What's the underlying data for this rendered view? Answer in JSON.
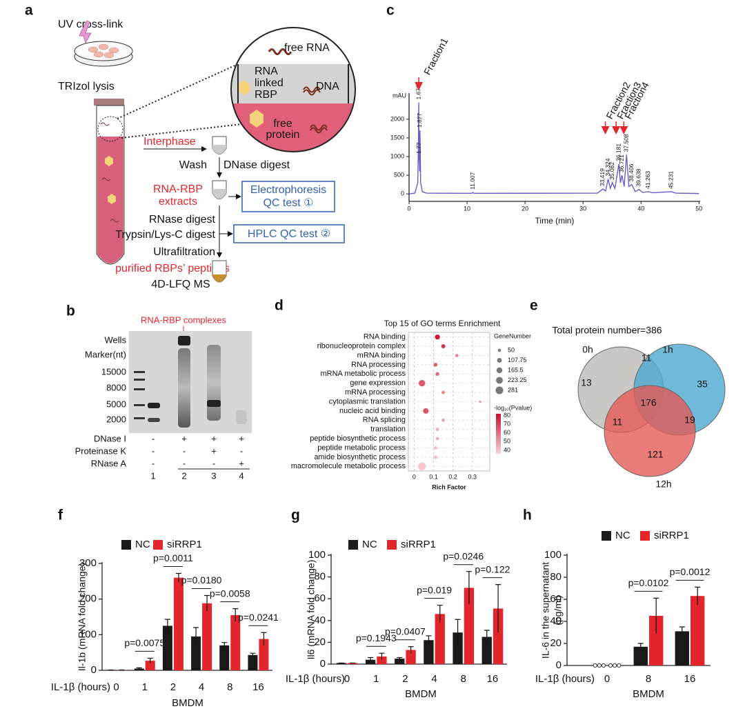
{
  "panel_labels": [
    "a",
    "b",
    "c",
    "d",
    "e",
    "f",
    "g",
    "h"
  ],
  "workflow": {
    "uv": "UV cross-link",
    "trizol": "TRIzol lysis",
    "free_rna": "free RNA",
    "rna_linked_rbp": [
      "RNA",
      "linked",
      "RBP"
    ],
    "dna": "DNA",
    "free_protein": [
      "free",
      "protein"
    ],
    "interphase": "Interphase",
    "wash": "Wash",
    "dnase": "DNase digest",
    "extracts": [
      "RNA-RBP",
      "extracts"
    ],
    "electrophoresis": [
      "Electrophoresis",
      "QC test ①"
    ],
    "rnase": "RNase digest",
    "trypsin": "Trypsin/Lys-C digest",
    "hplc": "HPLC QC test ②",
    "ultrafiltration": "Ultrafiltration",
    "purified": "purified RBPs’ peptides",
    "ms": "4D-LFQ MS"
  },
  "gel": {
    "annotation": "RNA-RBP complexes",
    "row_labels": [
      "Wells",
      "Marker(nt)"
    ],
    "ladder": [
      "15000",
      "8000",
      "5000",
      "2000"
    ],
    "conditions": [
      {
        "name": "DNase I",
        "marks": [
          "-",
          "+",
          "+",
          "+"
        ]
      },
      {
        "name": "Proteinase K",
        "marks": [
          "-",
          "-",
          "+",
          "-"
        ]
      },
      {
        "name": "RNase A",
        "marks": [
          "-",
          "-",
          "-",
          "+"
        ]
      }
    ],
    "lanes": [
      "1",
      "2",
      "3",
      "4"
    ]
  },
  "venn": {
    "title": "Total protein number=386",
    "sets": [
      "0h",
      "1h",
      "12h"
    ],
    "regions": [
      "13",
      "11",
      "35",
      "176",
      "11",
      "19",
      "121"
    ]
  },
  "chart_data": [
    {
      "type": "line",
      "xlabel": "Time (min)",
      "ylabel": "mAU",
      "color": "#6a5acd",
      "x": [
        0,
        1.0,
        1.5,
        1.602,
        1.678,
        1.72,
        1.77,
        1.82,
        1.877,
        2.0,
        2.3,
        3,
        10.8,
        11.007,
        11.2,
        32.5,
        33.419,
        33.9,
        34.324,
        34.7,
        35.062,
        35.5,
        36.181,
        36.45,
        36.721,
        37.1,
        37.508,
        37.9,
        38.406,
        39.0,
        39.638,
        40.3,
        41.263,
        42,
        45.231,
        46,
        50
      ],
      "values": [
        0,
        20,
        300,
        1200,
        2450,
        900,
        1000,
        600,
        1700,
        300,
        60,
        20,
        15,
        40,
        15,
        20,
        130,
        80,
        400,
        150,
        300,
        150,
        800,
        300,
        500,
        200,
        1050,
        200,
        250,
        60,
        120,
        40,
        60,
        30,
        60,
        20,
        10
      ],
      "peaks": [
        1.678,
        1.77,
        1.877,
        11.007,
        33.419,
        34.324,
        35.062,
        36.181,
        36.721,
        37.508,
        38.406,
        39.638,
        41.263,
        45.231
      ],
      "fractions": [
        "Fraction1",
        "Fraction2",
        "Fraction3",
        "Fraction4"
      ],
      "xlim": [
        0,
        50.2
      ],
      "ylim": [
        -200,
        2700
      ],
      "xticks": [
        0,
        10,
        20,
        30,
        40,
        50
      ],
      "yticks": [
        0,
        500,
        1000,
        1500,
        2000
      ]
    },
    {
      "type": "bubble",
      "title": "Top 15 of GO terms Enrichment",
      "xlabel": "Rich Factor",
      "categories": [
        "RNA binding",
        "ribonucleoprotein complex",
        "mRNA binding",
        "RNA processing",
        "mRNA metabolic process",
        "gene expression",
        "mRNA processing",
        "cytoplasmic translation",
        "nucleic acid binding",
        "RNA splicing",
        "translation",
        "peptide biosynthetic process",
        "peptide metabolic process",
        "amide biosynthetic process",
        "macromolecule metabolic process"
      ],
      "x": [
        0.12,
        0.15,
        0.22,
        0.11,
        0.12,
        0.04,
        0.15,
        0.34,
        0.06,
        0.15,
        0.12,
        0.12,
        0.11,
        0.11,
        0.04
      ],
      "size": [
        120,
        80,
        50,
        70,
        70,
        200,
        55,
        30,
        150,
        50,
        55,
        55,
        55,
        58,
        281
      ],
      "color_values": [
        80,
        75,
        55,
        65,
        60,
        65,
        55,
        50,
        65,
        50,
        45,
        45,
        42,
        42,
        40
      ],
      "xlim": [
        -0.03,
        0.39
      ],
      "xticks": [
        0,
        0.1,
        0.2,
        0.3
      ],
      "size_title": "GeneNumber",
      "size_ticks": [
        50,
        107.75,
        165.5,
        223.25,
        281
      ],
      "color_title": "-log₁₀(Pvalue)",
      "color_lim": [
        36,
        82
      ],
      "color_ticks": [
        80,
        70,
        60,
        50,
        40
      ]
    },
    {
      "type": "bar",
      "ylabel": [
        "Il-1b (mRNA fold change)"
      ],
      "xlabel": "BMDM",
      "category_label": "IL-1β (hours)",
      "categories": [
        "0",
        "1",
        "2",
        "4",
        "8",
        "16"
      ],
      "series": [
        {
          "name": "NC",
          "color": "#1a1a1a",
          "values": [
            1,
            5,
            125,
            95,
            70,
            43
          ],
          "errors": [
            0,
            2,
            18,
            25,
            8,
            5
          ]
        },
        {
          "name": "siRRP1",
          "color": "#e3262b",
          "values": [
            1,
            27,
            260,
            188,
            155,
            88
          ],
          "errors": [
            0,
            7,
            12,
            22,
            18,
            18
          ]
        }
      ],
      "annotations": [
        null,
        "p=0.0075",
        "p=0.0011",
        "p=0.0180",
        "p=0.0058",
        "p=0.0241"
      ],
      "ylim": [
        0,
        300
      ],
      "yticks": [
        0,
        100,
        200,
        300
      ]
    },
    {
      "type": "bar",
      "ylabel": [
        "Il6 (mRNA fold change)"
      ],
      "xlabel": "BMDM",
      "category_label": "IL-1β (hours)",
      "categories": [
        "0",
        "1",
        "2",
        "4",
        "8",
        "16"
      ],
      "series": [
        {
          "name": "NC",
          "color": "#1a1a1a",
          "values": [
            1,
            4,
            5,
            22,
            29,
            25
          ],
          "errors": [
            0,
            2,
            1,
            4,
            12,
            6
          ]
        },
        {
          "name": "siRRP1",
          "color": "#e3262b",
          "values": [
            1,
            7,
            13,
            46,
            70,
            51
          ],
          "errors": [
            0,
            3,
            3,
            8,
            15,
            22
          ]
        }
      ],
      "annotations": [
        null,
        "p=0.1943",
        "p=0.0407",
        "p=0.019",
        "p=0.0246",
        "p=0.122"
      ],
      "ylim": [
        0,
        100
      ],
      "yticks": [
        0,
        20,
        40,
        60,
        80,
        100
      ]
    },
    {
      "type": "bar",
      "ylabel": [
        "IL-6 in the supernatant",
        "(pg/ml)"
      ],
      "xlabel": "BMDM",
      "category_label": "IL-1β (hours)",
      "categories": [
        "0",
        "8",
        "16"
      ],
      "series": [
        {
          "name": "NC",
          "color": "#1a1a1a",
          "values": [
            0,
            17,
            31
          ],
          "errors": [
            0,
            3,
            4
          ]
        },
        {
          "name": "siRRP1",
          "color": "#e3262b",
          "values": [
            0,
            45,
            63
          ],
          "errors": [
            0,
            16,
            8
          ]
        }
      ],
      "annotations": [
        null,
        "p=0.0102",
        "p=0.0012"
      ],
      "ylim": [
        0,
        100
      ],
      "yticks": [
        0,
        20,
        40,
        60,
        80,
        100
      ]
    }
  ]
}
